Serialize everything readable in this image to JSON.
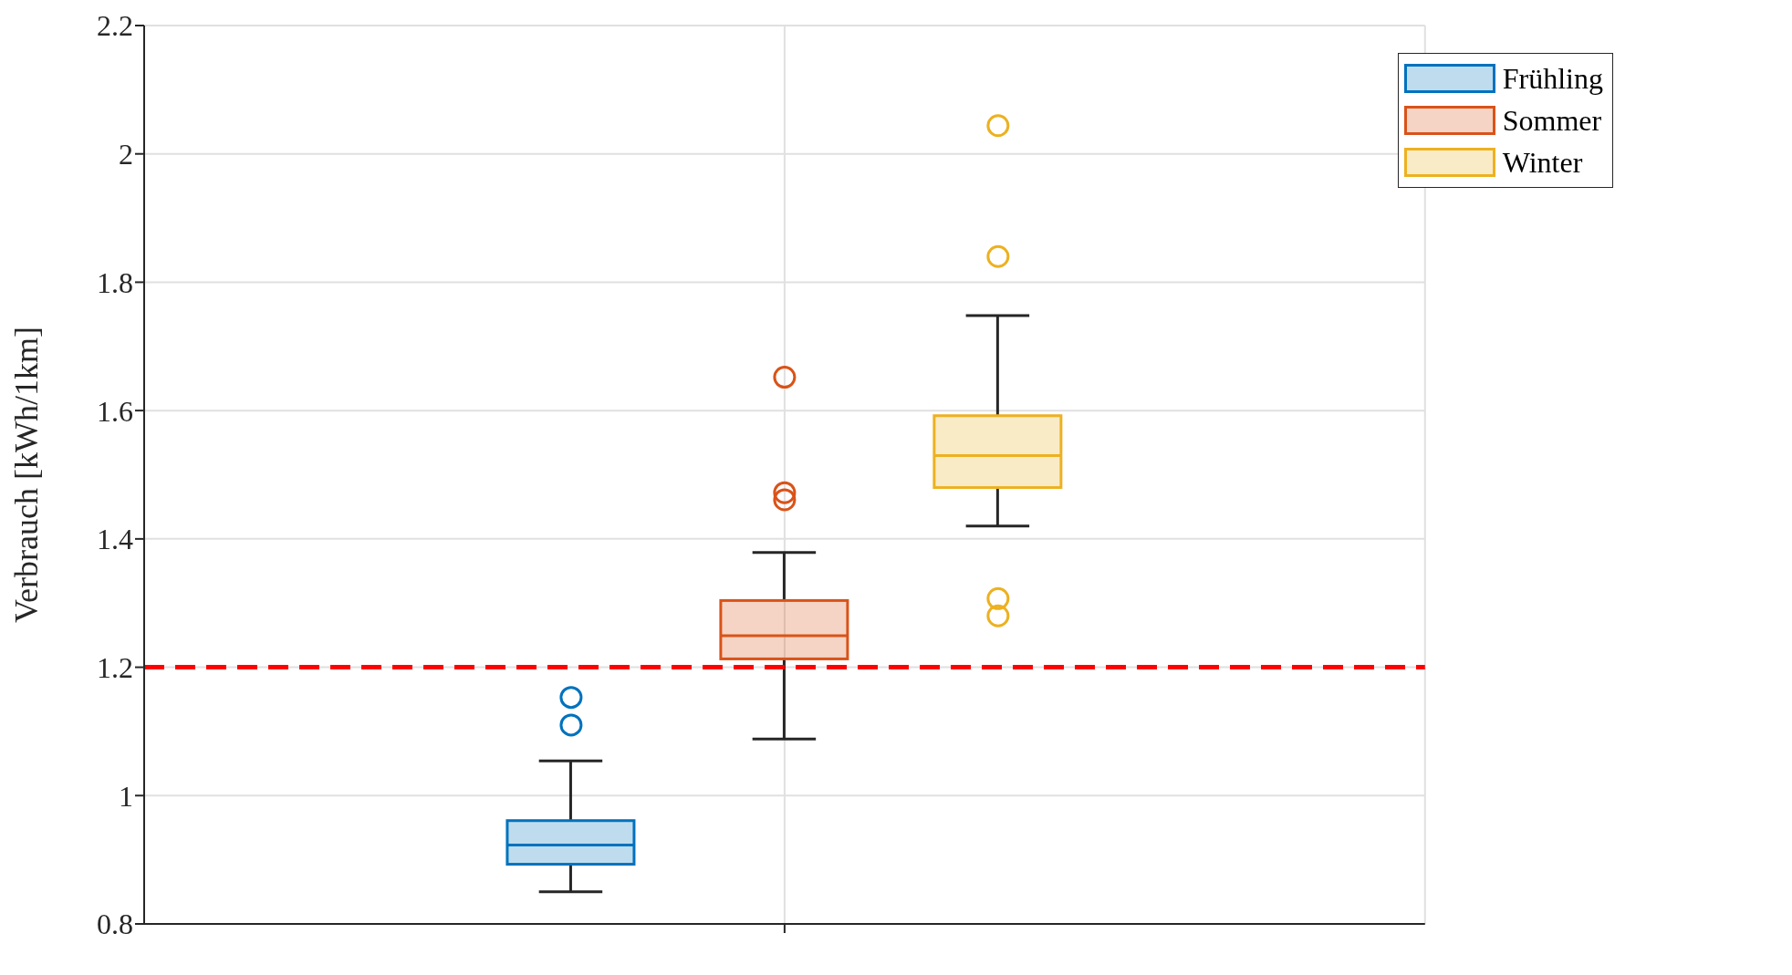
{
  "chart_data": {
    "type": "box",
    "ylabel": "Verbrauch [kWh/1km]",
    "categories": [
      null
    ],
    "ylim": [
      0.8,
      2.2
    ],
    "yticks": [
      0.8,
      1,
      1.2,
      1.4,
      1.6,
      1.8,
      2,
      2.2
    ],
    "grid": true,
    "legend": "top right",
    "ref_lines": [
      {
        "axis": "y",
        "value": 1.2,
        "color": "#ff0000",
        "line_style": "dashed"
      }
    ],
    "series": [
      {
        "name": "Frühling",
        "color": "#0072bd",
        "boxes": [
          {
            "low": 0.85,
            "q1": 0.893,
            "median": 0.923,
            "q3": 0.961,
            "high": 1.054,
            "outliers": [
              1.11,
              1.153
            ]
          }
        ]
      },
      {
        "name": "Sommer",
        "color": "#d95319",
        "boxes": [
          {
            "low": 1.088,
            "q1": 1.213,
            "median": 1.249,
            "q3": 1.304,
            "high": 1.379,
            "outliers": [
              1.461,
              1.472,
              1.652
            ]
          }
        ]
      },
      {
        "name": "Winter",
        "color": "#edb120",
        "boxes": [
          {
            "low": 1.42,
            "q1": 1.48,
            "median": 1.53,
            "q3": 1.592,
            "high": 1.748,
            "outliers": [
              1.28,
              1.307,
              1.84,
              2.044
            ]
          }
        ]
      }
    ]
  }
}
